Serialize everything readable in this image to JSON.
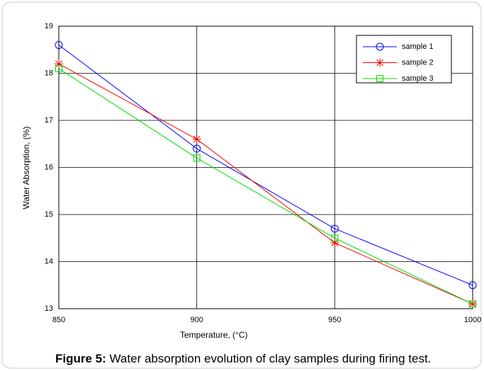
{
  "chart_data": {
    "type": "line",
    "caption_label": "Figure 5:",
    "caption_text": " Water absorption evolution of clay samples during firing test.",
    "xlabel": "Temperature, (°C)",
    "ylabel": "Water Absorption, (%)",
    "x": [
      850,
      900,
      950,
      1000
    ],
    "series": [
      {
        "name": "sample 1",
        "color": "#0000ff",
        "marker": "o",
        "values": [
          18.6,
          16.4,
          14.7,
          13.5
        ]
      },
      {
        "name": "sample 2",
        "color": "#ff0000",
        "marker": "*",
        "values": [
          18.2,
          16.6,
          14.4,
          13.1
        ]
      },
      {
        "name": "sample 3",
        "color": "#00dd00",
        "marker": "s",
        "values": [
          18.1,
          16.2,
          14.5,
          13.1
        ]
      }
    ],
    "xlim": [
      850,
      1000
    ],
    "xticks": [
      850,
      900,
      950,
      1000
    ],
    "ylim": [
      13,
      19
    ],
    "yticks": [
      13,
      14,
      15,
      16,
      17,
      18,
      19
    ],
    "grid": true,
    "legend": "upper right"
  }
}
